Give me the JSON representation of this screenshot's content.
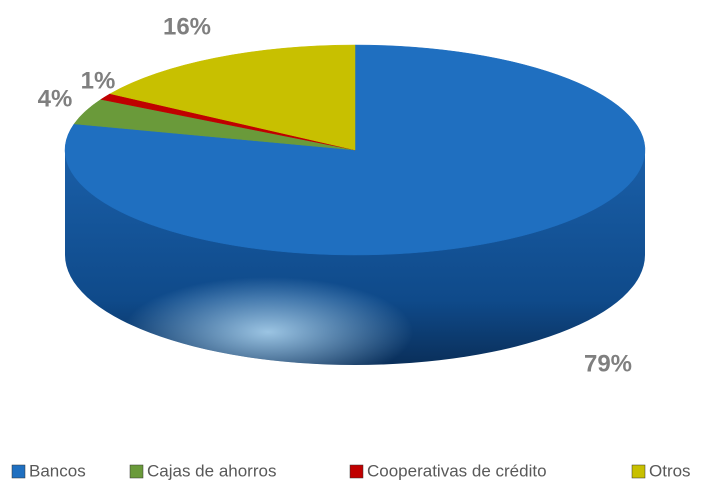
{
  "chart_data": {
    "type": "pie",
    "categories": [
      "Bancos",
      "Cajas de ahorros",
      "Cooperativas de crédito",
      "Otros"
    ],
    "values": [
      79,
      4,
      1,
      16
    ],
    "value_labels": [
      "79%",
      "4%",
      "1%",
      "16%"
    ],
    "colors": [
      "#1f6fc0",
      "#6a9a3a",
      "#c00000",
      "#c8c000"
    ],
    "legend": "bottom"
  }
}
